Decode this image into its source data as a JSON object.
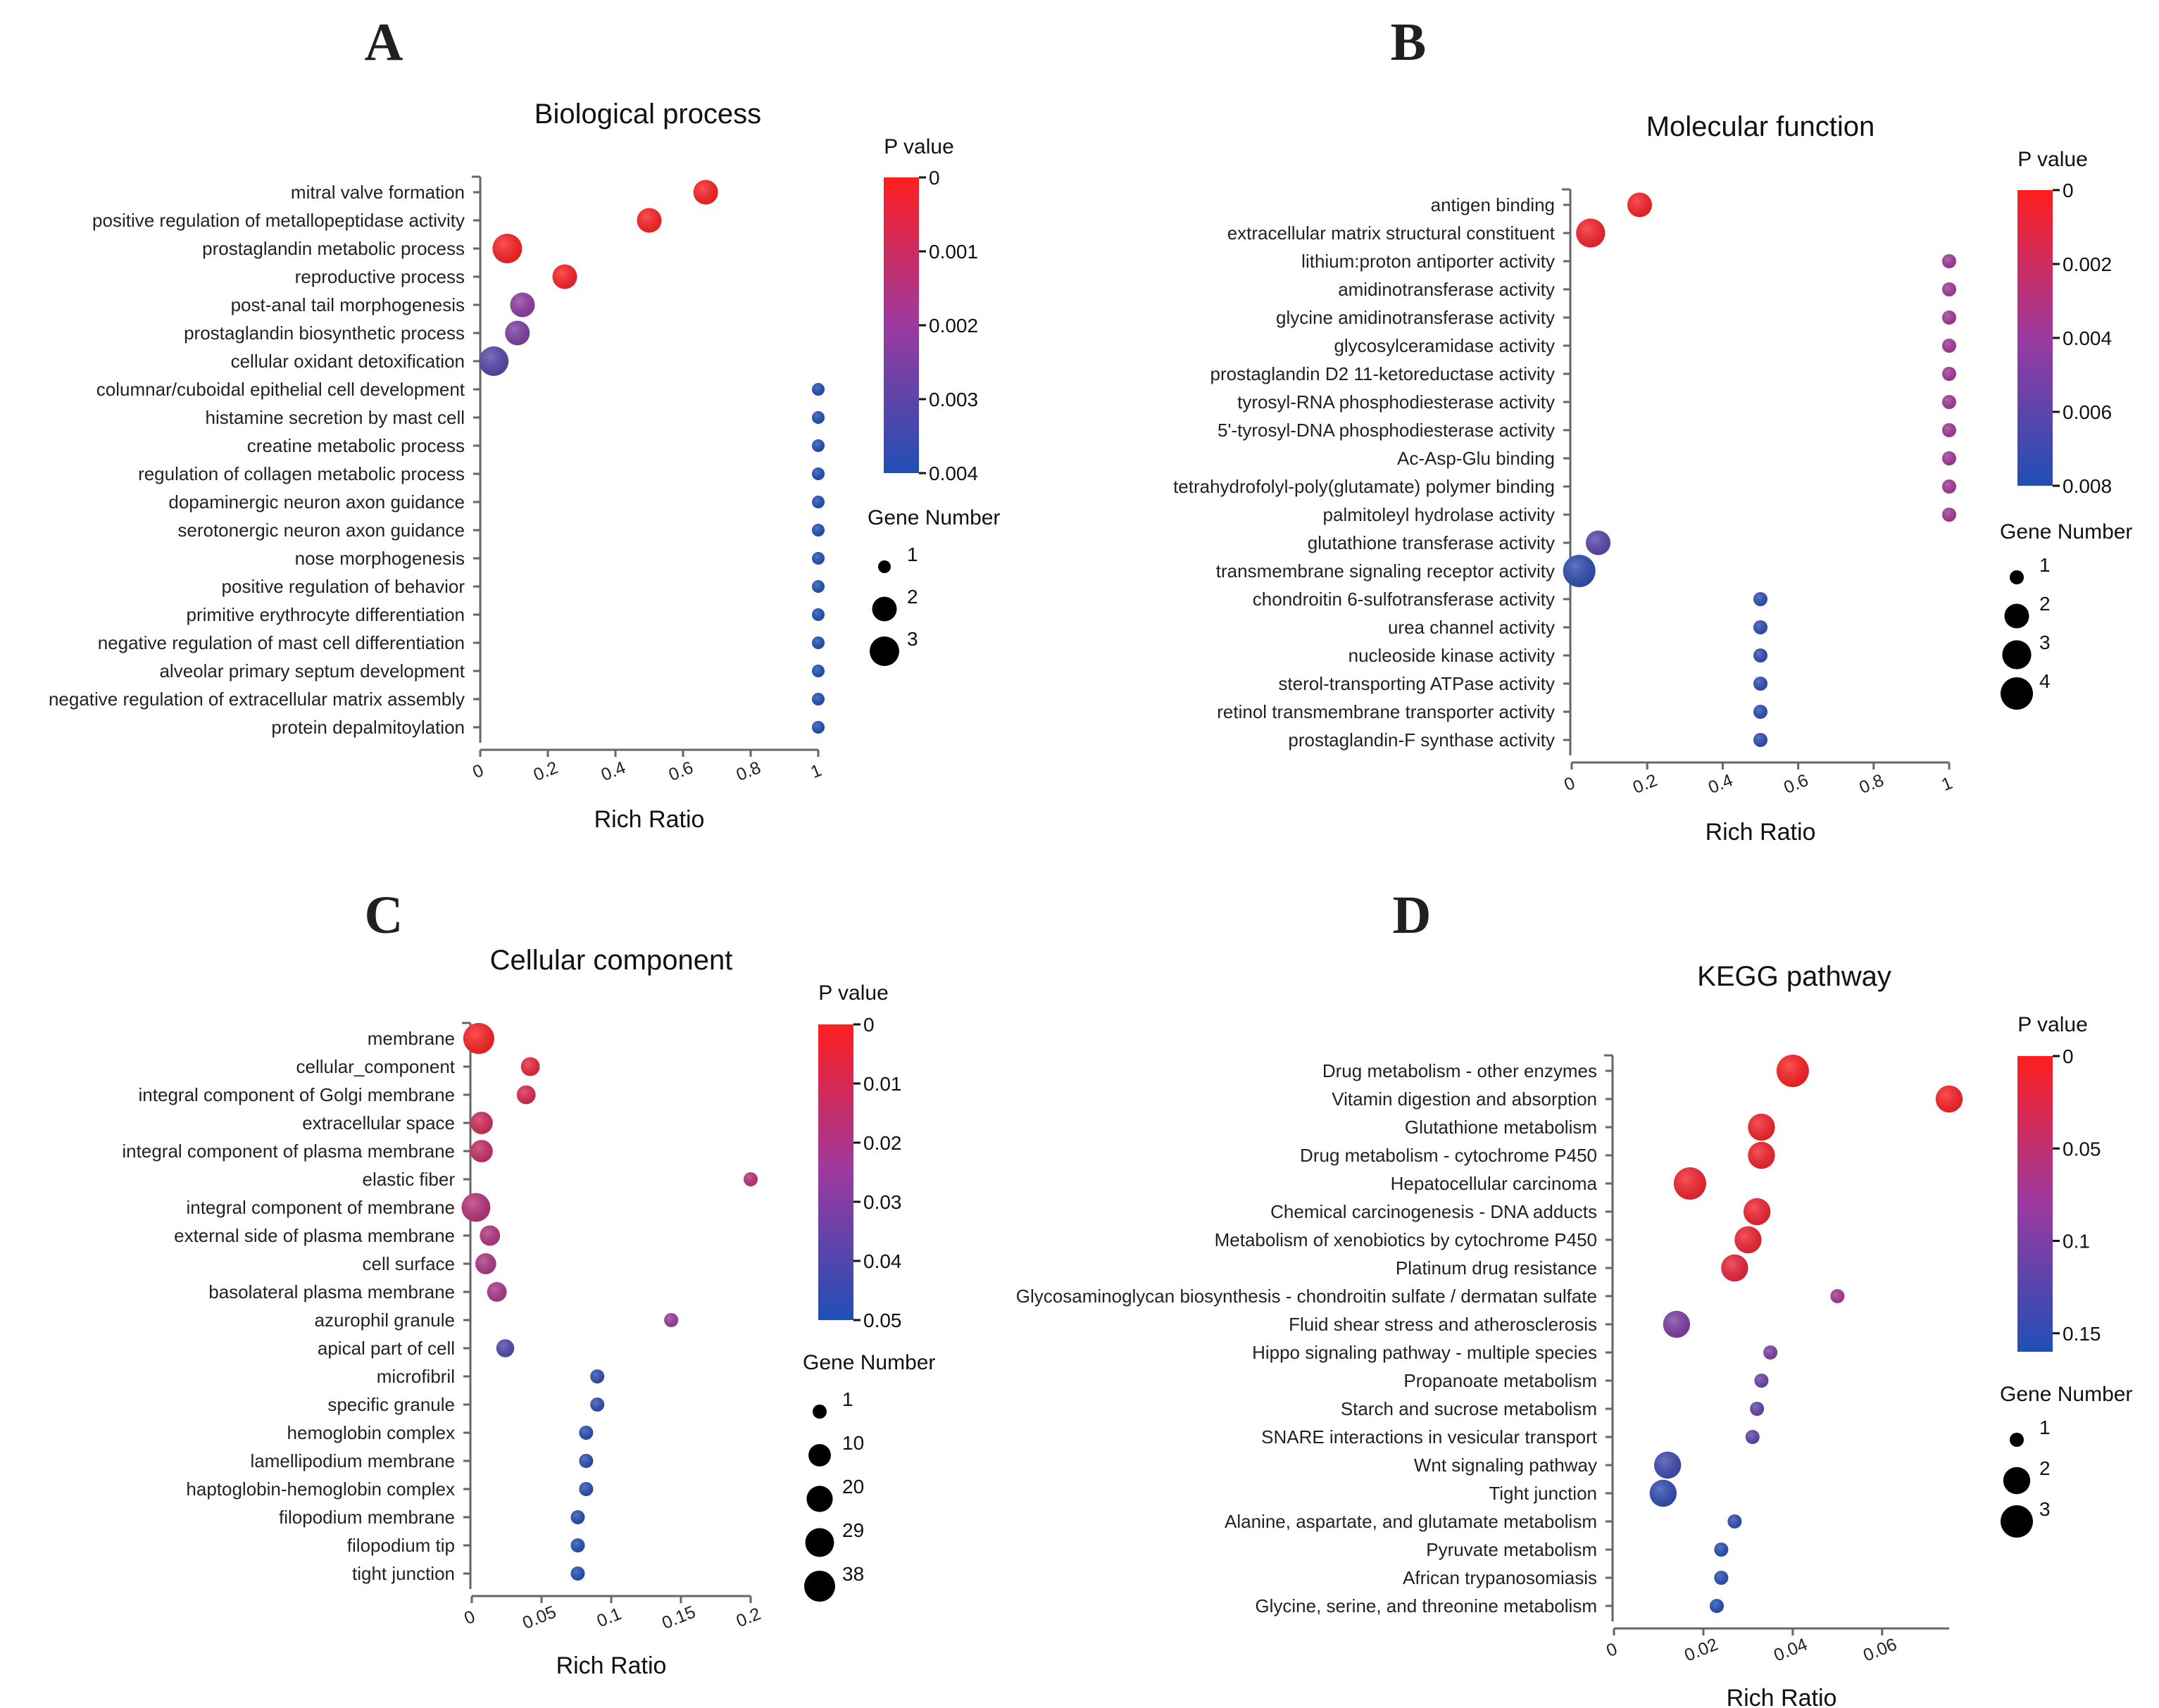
{
  "chart_data": [
    {
      "panel": "A",
      "type": "scatter",
      "title": "Biological process",
      "xlabel": "Rich Ratio",
      "ylabel": "",
      "xlim": [
        0,
        1
      ],
      "xticks": [
        "0",
        "0.2",
        "0.4",
        "0.6",
        "0.8",
        "1"
      ],
      "legend_pvalue": {
        "title": "P value",
        "ticks": [
          "0",
          "0.001",
          "0.002",
          "0.003",
          "0.004"
        ],
        "max": 0.004
      },
      "legend_size": {
        "title": "Gene Number",
        "values": [
          1,
          2,
          3
        ]
      },
      "colors": {
        "low_p": "#ff1f1f",
        "mid_p": "#9b3aa0",
        "high_p": "#1f4fb5"
      },
      "points": [
        {
          "term": "mitral valve formation",
          "rich_ratio": 0.667,
          "p_value": 1e-05,
          "gene_number": 2
        },
        {
          "term": "positive regulation of metallopeptidase activity",
          "rich_ratio": 0.5,
          "p_value": 2e-05,
          "gene_number": 2
        },
        {
          "term": "prostaglandin metabolic process",
          "rich_ratio": 0.08,
          "p_value": 4e-05,
          "gene_number": 3
        },
        {
          "term": "reproductive process",
          "rich_ratio": 0.25,
          "p_value": 8e-05,
          "gene_number": 2
        },
        {
          "term": "post-anal tail morphogenesis",
          "rich_ratio": 0.125,
          "p_value": 0.0022,
          "gene_number": 2
        },
        {
          "term": "prostaglandin biosynthetic process",
          "rich_ratio": 0.11,
          "p_value": 0.0025,
          "gene_number": 2
        },
        {
          "term": "cellular oxidant detoxification",
          "rich_ratio": 0.04,
          "p_value": 0.0031,
          "gene_number": 3
        },
        {
          "term": "columnar/cuboidal epithelial cell development",
          "rich_ratio": 1,
          "p_value": 0.004,
          "gene_number": 1
        },
        {
          "term": "histamine secretion by mast cell",
          "rich_ratio": 1,
          "p_value": 0.004,
          "gene_number": 1
        },
        {
          "term": "creatine metabolic process",
          "rich_ratio": 1,
          "p_value": 0.004,
          "gene_number": 1
        },
        {
          "term": "regulation of collagen metabolic process",
          "rich_ratio": 1,
          "p_value": 0.004,
          "gene_number": 1
        },
        {
          "term": "dopaminergic neuron axon guidance",
          "rich_ratio": 1,
          "p_value": 0.004,
          "gene_number": 1
        },
        {
          "term": "serotonergic neuron axon guidance",
          "rich_ratio": 1,
          "p_value": 0.004,
          "gene_number": 1
        },
        {
          "term": "nose morphogenesis",
          "rich_ratio": 1,
          "p_value": 0.004,
          "gene_number": 1
        },
        {
          "term": "positive regulation of behavior",
          "rich_ratio": 1,
          "p_value": 0.004,
          "gene_number": 1
        },
        {
          "term": "primitive erythrocyte differentiation",
          "rich_ratio": 1,
          "p_value": 0.004,
          "gene_number": 1
        },
        {
          "term": "negative regulation of mast cell differentiation",
          "rich_ratio": 1,
          "p_value": 0.004,
          "gene_number": 1
        },
        {
          "term": "alveolar primary septum development",
          "rich_ratio": 1,
          "p_value": 0.004,
          "gene_number": 1
        },
        {
          "term": "negative regulation of extracellular matrix assembly",
          "rich_ratio": 1,
          "p_value": 0.004,
          "gene_number": 1
        },
        {
          "term": "protein depalmitoylation",
          "rich_ratio": 1,
          "p_value": 0.004,
          "gene_number": 1
        }
      ]
    },
    {
      "panel": "B",
      "type": "scatter",
      "title": "Molecular function",
      "xlabel": "Rich Ratio",
      "ylabel": "",
      "xlim": [
        0,
        1
      ],
      "xticks": [
        "0",
        "0.2",
        "0.4",
        "0.6",
        "0.8",
        "1"
      ],
      "legend_pvalue": {
        "title": "P value",
        "ticks": [
          "0",
          "0.002",
          "0.004",
          "0.006",
          "0.008"
        ],
        "max": 0.008
      },
      "legend_size": {
        "title": "Gene Number",
        "values": [
          1,
          2,
          3,
          4
        ]
      },
      "colors": {
        "low_p": "#ff1f1f",
        "mid_p": "#9b3aa0",
        "high_p": "#1f4fb5"
      },
      "points": [
        {
          "term": "antigen binding",
          "rich_ratio": 0.18,
          "p_value": 0.0002,
          "gene_number": 2
        },
        {
          "term": "extracellular matrix structural constituent",
          "rich_ratio": 0.05,
          "p_value": 0.0003,
          "gene_number": 3
        },
        {
          "term": "lithium:proton antiporter activity",
          "rich_ratio": 1,
          "p_value": 0.0037,
          "gene_number": 1
        },
        {
          "term": "amidinotransferase activity",
          "rich_ratio": 1,
          "p_value": 0.0037,
          "gene_number": 1
        },
        {
          "term": "glycine amidinotransferase activity",
          "rich_ratio": 1,
          "p_value": 0.0037,
          "gene_number": 1
        },
        {
          "term": "glycosylceramidase activity",
          "rich_ratio": 1,
          "p_value": 0.0037,
          "gene_number": 1
        },
        {
          "term": "prostaglandin D2 11-ketoreductase activity",
          "rich_ratio": 1,
          "p_value": 0.0037,
          "gene_number": 1
        },
        {
          "term": "tyrosyl-RNA phosphodiesterase activity",
          "rich_ratio": 1,
          "p_value": 0.0037,
          "gene_number": 1
        },
        {
          "term": "5'-tyrosyl-DNA phosphodiesterase activity",
          "rich_ratio": 1,
          "p_value": 0.0037,
          "gene_number": 1
        },
        {
          "term": "Ac-Asp-Glu binding",
          "rich_ratio": 1,
          "p_value": 0.0037,
          "gene_number": 1
        },
        {
          "term": "tetrahydrofolyl-poly(glutamate) polymer binding",
          "rich_ratio": 1,
          "p_value": 0.0037,
          "gene_number": 1
        },
        {
          "term": "palmitoleyl hydrolase activity",
          "rich_ratio": 1,
          "p_value": 0.0037,
          "gene_number": 1
        },
        {
          "term": "glutathione transferase activity",
          "rich_ratio": 0.07,
          "p_value": 0.0062,
          "gene_number": 2
        },
        {
          "term": "transmembrane signaling receptor activity",
          "rich_ratio": 0.02,
          "p_value": 0.0075,
          "gene_number": 4
        },
        {
          "term": "chondroitin 6-sulfotransferase activity",
          "rich_ratio": 0.5,
          "p_value": 0.0076,
          "gene_number": 1
        },
        {
          "term": "urea channel activity",
          "rich_ratio": 0.5,
          "p_value": 0.0076,
          "gene_number": 1
        },
        {
          "term": "nucleoside kinase activity",
          "rich_ratio": 0.5,
          "p_value": 0.0076,
          "gene_number": 1
        },
        {
          "term": "sterol-transporting ATPase activity",
          "rich_ratio": 0.5,
          "p_value": 0.0076,
          "gene_number": 1
        },
        {
          "term": "retinol transmembrane transporter activity",
          "rich_ratio": 0.5,
          "p_value": 0.0076,
          "gene_number": 1
        },
        {
          "term": "prostaglandin-F synthase activity",
          "rich_ratio": 0.5,
          "p_value": 0.0076,
          "gene_number": 1
        }
      ]
    },
    {
      "panel": "C",
      "type": "scatter",
      "title": "Cellular component",
      "xlabel": "Rich Ratio",
      "ylabel": "",
      "xlim": [
        0,
        0.2
      ],
      "xticks": [
        "0",
        "0.05",
        "0.1",
        "0.15",
        "0.2"
      ],
      "legend_pvalue": {
        "title": "P value",
        "ticks": [
          "0",
          "0.01",
          "0.02",
          "0.03",
          "0.04",
          "0.05"
        ],
        "max": 0.05
      },
      "legend_size": {
        "title": "Gene Number",
        "values": [
          1,
          10,
          20,
          29,
          38
        ]
      },
      "colors": {
        "low_p": "#ff1f1f",
        "mid_p": "#9b3aa0",
        "high_p": "#1f4fb5"
      },
      "points": [
        {
          "term": "membrane",
          "rich_ratio": 0.005,
          "p_value": 0.0005,
          "gene_number": 38
        },
        {
          "term": "cellular_component",
          "rich_ratio": 0.042,
          "p_value": 0.006,
          "gene_number": 4
        },
        {
          "term": "integral component of Golgi membrane",
          "rich_ratio": 0.039,
          "p_value": 0.009,
          "gene_number": 4
        },
        {
          "term": "extracellular space",
          "rich_ratio": 0.007,
          "p_value": 0.011,
          "gene_number": 10
        },
        {
          "term": "integral component of plasma membrane",
          "rich_ratio": 0.007,
          "p_value": 0.014,
          "gene_number": 10
        },
        {
          "term": "elastic fiber",
          "rich_ratio": 0.2,
          "p_value": 0.017,
          "gene_number": 1
        },
        {
          "term": "integral component of membrane",
          "rich_ratio": 0.003,
          "p_value": 0.018,
          "gene_number": 29
        },
        {
          "term": "external side of plasma membrane",
          "rich_ratio": 0.013,
          "p_value": 0.019,
          "gene_number": 6
        },
        {
          "term": "cell surface",
          "rich_ratio": 0.01,
          "p_value": 0.02,
          "gene_number": 7
        },
        {
          "term": "basolateral plasma membrane",
          "rich_ratio": 0.018,
          "p_value": 0.021,
          "gene_number": 5
        },
        {
          "term": "azurophil granule",
          "rich_ratio": 0.143,
          "p_value": 0.025,
          "gene_number": 1
        },
        {
          "term": "apical part of cell",
          "rich_ratio": 0.024,
          "p_value": 0.04,
          "gene_number": 3
        },
        {
          "term": "microfibril",
          "rich_ratio": 0.09,
          "p_value": 0.047,
          "gene_number": 1
        },
        {
          "term": "specific granule",
          "rich_ratio": 0.09,
          "p_value": 0.047,
          "gene_number": 1
        },
        {
          "term": "hemoglobin complex",
          "rich_ratio": 0.082,
          "p_value": 0.048,
          "gene_number": 1
        },
        {
          "term": "lamellipodium membrane",
          "rich_ratio": 0.082,
          "p_value": 0.048,
          "gene_number": 1
        },
        {
          "term": "haptoglobin-hemoglobin complex",
          "rich_ratio": 0.082,
          "p_value": 0.048,
          "gene_number": 1
        },
        {
          "term": "filopodium membrane",
          "rich_ratio": 0.076,
          "p_value": 0.049,
          "gene_number": 1
        },
        {
          "term": "filopodium tip",
          "rich_ratio": 0.076,
          "p_value": 0.049,
          "gene_number": 1
        },
        {
          "term": "tight junction",
          "rich_ratio": 0.076,
          "p_value": 0.049,
          "gene_number": 1
        }
      ]
    },
    {
      "panel": "D",
      "type": "scatter",
      "title": "KEGG pathway",
      "xlabel": "Rich Ratio",
      "ylabel": "",
      "xlim": [
        0,
        0.075
      ],
      "xticks": [
        "0",
        "0.02",
        "0.04",
        "0.06"
      ],
      "legend_pvalue": {
        "title": "P value",
        "ticks": [
          "0",
          "0.05",
          "0.1",
          "0.15"
        ],
        "max": 0.16
      },
      "legend_size": {
        "title": "Gene Number",
        "values": [
          1,
          2,
          3
        ]
      },
      "colors": {
        "low_p": "#ff1f1f",
        "mid_p": "#9b3aa0",
        "high_p": "#1f4fb5"
      },
      "points": [
        {
          "term": "Drug metabolism - other enzymes",
          "rich_ratio": 0.04,
          "p_value": 0.001,
          "gene_number": 3
        },
        {
          "term": "Vitamin digestion and absorption",
          "rich_ratio": 0.075,
          "p_value": 0.003,
          "gene_number": 2
        },
        {
          "term": "Glutathione metabolism",
          "rich_ratio": 0.033,
          "p_value": 0.006,
          "gene_number": 2
        },
        {
          "term": "Drug metabolism - cytochrome P450",
          "rich_ratio": 0.033,
          "p_value": 0.007,
          "gene_number": 2
        },
        {
          "term": "Hepatocellular carcinoma",
          "rich_ratio": 0.017,
          "p_value": 0.008,
          "gene_number": 3
        },
        {
          "term": "Chemical carcinogenesis - DNA adducts",
          "rich_ratio": 0.032,
          "p_value": 0.009,
          "gene_number": 2
        },
        {
          "term": "Metabolism of xenobiotics by cytochrome P450",
          "rich_ratio": 0.03,
          "p_value": 0.011,
          "gene_number": 2
        },
        {
          "term": "Platinum drug resistance",
          "rich_ratio": 0.027,
          "p_value": 0.015,
          "gene_number": 2
        },
        {
          "term": "Glycosaminoglycan biosynthesis - chondroitin sulfate / dermatan sulfate",
          "rich_ratio": 0.05,
          "p_value": 0.07,
          "gene_number": 1
        },
        {
          "term": "Fluid shear stress and atherosclerosis",
          "rich_ratio": 0.014,
          "p_value": 0.1,
          "gene_number": 2
        },
        {
          "term": "Hippo signaling pathway - multiple species",
          "rich_ratio": 0.035,
          "p_value": 0.1,
          "gene_number": 1
        },
        {
          "term": "Propanoate metabolism",
          "rich_ratio": 0.033,
          "p_value": 0.11,
          "gene_number": 1
        },
        {
          "term": "Starch and sucrose metabolism",
          "rich_ratio": 0.032,
          "p_value": 0.115,
          "gene_number": 1
        },
        {
          "term": "SNARE interactions in vesicular transport",
          "rich_ratio": 0.031,
          "p_value": 0.12,
          "gene_number": 1
        },
        {
          "term": "Wnt signaling pathway",
          "rich_ratio": 0.012,
          "p_value": 0.14,
          "gene_number": 2
        },
        {
          "term": "Tight junction",
          "rich_ratio": 0.011,
          "p_value": 0.15,
          "gene_number": 2
        },
        {
          "term": "Alanine, aspartate, and glutamate metabolism",
          "rich_ratio": 0.027,
          "p_value": 0.15,
          "gene_number": 1
        },
        {
          "term": "Pyruvate metabolism",
          "rich_ratio": 0.024,
          "p_value": 0.155,
          "gene_number": 1
        },
        {
          "term": "African trypanosomiasis",
          "rich_ratio": 0.024,
          "p_value": 0.155,
          "gene_number": 1
        },
        {
          "term": "Glycine, serine, and threonine metabolism",
          "rich_ratio": 0.023,
          "p_value": 0.16,
          "gene_number": 1
        }
      ]
    }
  ]
}
